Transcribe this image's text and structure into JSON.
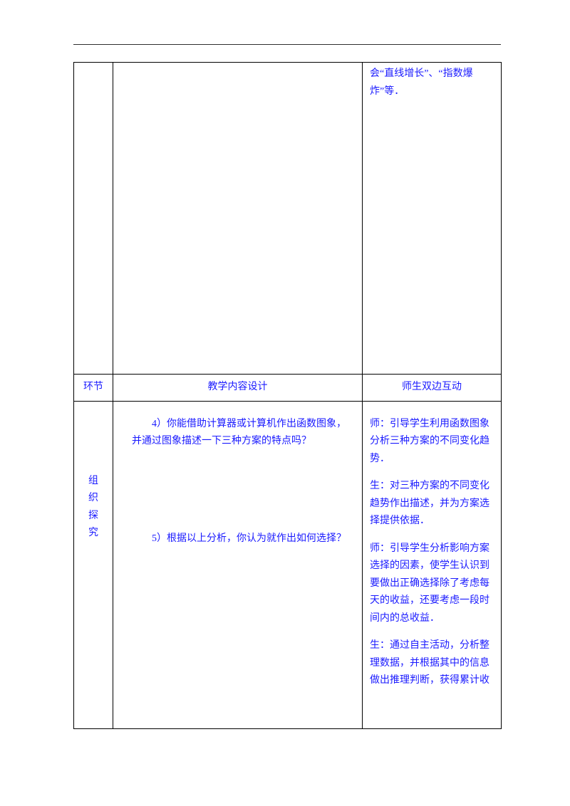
{
  "text_color": "#1a1aff",
  "border_color": "#000000",
  "rule_color": "#2e2e2e",
  "font_family": "SimSun",
  "base_fontsize": 14,
  "row1": {
    "col3_text": "会“直线增长”、“指数爆炸”等．"
  },
  "header": {
    "col1": "环节",
    "col2": "教学内容设计",
    "col3": "师生双边互动"
  },
  "row3": {
    "col1_chars": [
      "组",
      "织",
      "探",
      "究"
    ],
    "q4_line1": "4）你能借助计算器或计算机作出函数图象，",
    "q4_line2": "并通过图象描述一下三种方案的特点吗？",
    "q5": "5）根据以上分析，你认为就作出如何选择？",
    "interact": [
      "师：引导学生利用函数图象分析三种方案的不同变化趋势．",
      "生：对三种方案的不同变化趋势作出描述，并为方案选择提供依据．",
      "师：引导学生分析影响方案选择的因素，使学生认识到要做出正确选择除了考虑每天的收益，还要考虑一段时间内的总收益．",
      "生：通过自主活动，分析整理数据，并根据其中的信息做出推理判断，获得累计收"
    ]
  }
}
